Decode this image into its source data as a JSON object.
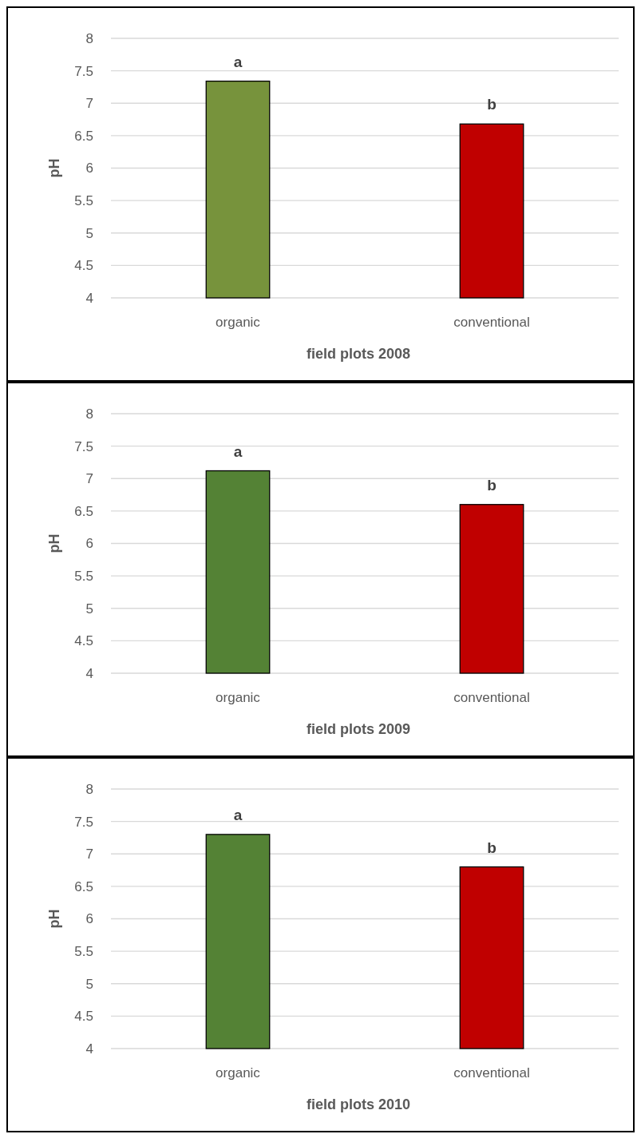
{
  "chart_data": [
    {
      "type": "bar",
      "xlabel": "field plots 2008",
      "ylabel": "pH",
      "categories": [
        "organic",
        "conventional"
      ],
      "values": [
        7.34,
        6.68
      ],
      "colors": [
        "#77933c",
        "#c00000"
      ],
      "ylim": [
        4,
        8
      ],
      "yticks": [
        4,
        4.5,
        5,
        5.5,
        6,
        6.5,
        7,
        7.5,
        8
      ],
      "grid": "y",
      "annotations": [
        {
          "text": "a",
          "x": "organic",
          "y": 7.34
        },
        {
          "text": "b",
          "x": "conventional",
          "y": 6.68
        }
      ]
    },
    {
      "type": "bar",
      "xlabel": "field plots 2009",
      "ylabel": "pH",
      "categories": [
        "organic",
        "conventional"
      ],
      "values": [
        7.12,
        6.6
      ],
      "colors": [
        "#548235",
        "#c00000"
      ],
      "ylim": [
        4,
        8
      ],
      "yticks": [
        4,
        4.5,
        5,
        5.5,
        6,
        6.5,
        7,
        7.5,
        8
      ],
      "grid": "y",
      "annotations": [
        {
          "text": "a",
          "x": "organic",
          "y": 7.12
        },
        {
          "text": "b",
          "x": "conventional",
          "y": 6.6
        }
      ]
    },
    {
      "type": "bar",
      "xlabel": "field plots 2010",
      "ylabel": "pH",
      "categories": [
        "organic",
        "conventional"
      ],
      "values": [
        7.3,
        6.8
      ],
      "colors": [
        "#548235",
        "#c00000"
      ],
      "ylim": [
        4,
        8
      ],
      "yticks": [
        4,
        4.5,
        5,
        5.5,
        6,
        6.5,
        7,
        7.5,
        8
      ],
      "grid": "y",
      "annotations": [
        {
          "text": "a",
          "x": "organic",
          "y": 7.3
        },
        {
          "text": "b",
          "x": "conventional",
          "y": 6.8
        }
      ]
    }
  ]
}
